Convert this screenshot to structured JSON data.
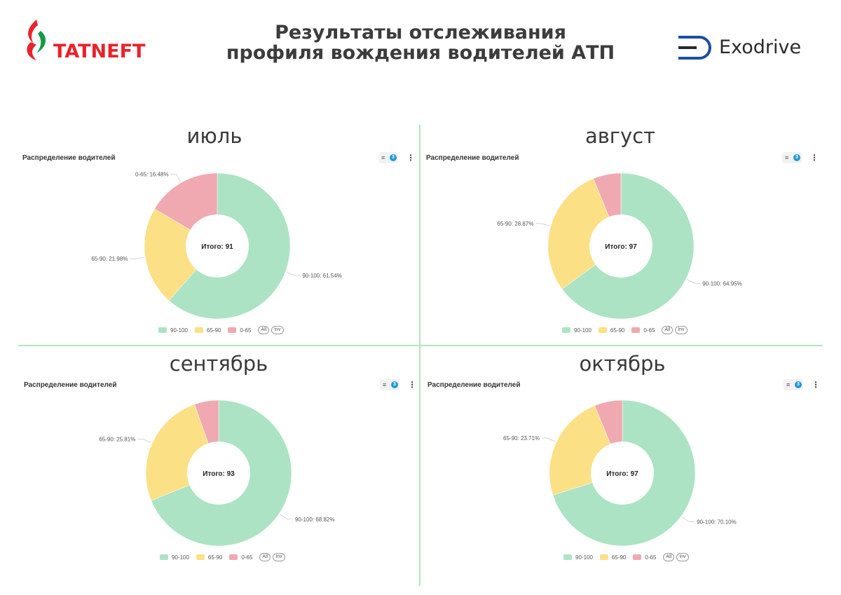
{
  "header": {
    "title_line1": "Результаты отслеживания",
    "title_line2": "профиля вождения водителей АТП",
    "left_logo_text": "TATNEFT",
    "right_logo_text": "Exodrive"
  },
  "colors": {
    "90-100": "#ade3c5",
    "65-90": "#fbe086",
    "0-65": "#f0a9b1",
    "leader": "#c8c8c8",
    "tatneft_red": "#e8232a",
    "tatneft_green": "#0f9b48",
    "exodrive_blue": "#1c4da0",
    "divider": "#b3e3bf"
  },
  "controls": {
    "filter_badge": "3",
    "menu_icon": "kebab-icon",
    "filter_icon": "filter-icon"
  },
  "legend": {
    "items": [
      "90-100",
      "65-90",
      "0-65"
    ],
    "all_label": "All",
    "inv_label": "Inv"
  },
  "chart_data": [
    {
      "type": "pie",
      "month": "июль",
      "title": "Распределение водителей",
      "center_label": "Итого: 91",
      "slices": [
        {
          "name": "90-100",
          "value": 61.54,
          "label": "90-100: 61.54%"
        },
        {
          "name": "65-90",
          "value": 21.98,
          "label": "65-90: 21.98%"
        },
        {
          "name": "0-65",
          "value": 16.48,
          "label": "0-65: 16.48%"
        }
      ]
    },
    {
      "type": "pie",
      "month": "август",
      "title": "Распределение водителей",
      "center_label": "Итого: 97",
      "slices": [
        {
          "name": "90-100",
          "value": 64.95,
          "label": "90-100: 64.95%"
        },
        {
          "name": "65-90",
          "value": 28.87,
          "label": "65-90: 28.87%"
        },
        {
          "name": "0-65",
          "value": 6.18,
          "label": ""
        }
      ]
    },
    {
      "type": "pie",
      "month": "сентябрь",
      "title": "Распределение водителей",
      "center_label": "Итого: 93",
      "slices": [
        {
          "name": "90-100",
          "value": 68.82,
          "label": "90-100: 68.82%"
        },
        {
          "name": "65-90",
          "value": 25.81,
          "label": "65-90: 25.81%"
        },
        {
          "name": "0-65",
          "value": 5.37,
          "label": ""
        }
      ]
    },
    {
      "type": "pie",
      "month": "октябрь",
      "title": "Распределение водителей",
      "center_label": "Итого: 97",
      "slices": [
        {
          "name": "90-100",
          "value": 70.1,
          "label": "90-100: 70.10%"
        },
        {
          "name": "65-90",
          "value": 23.71,
          "label": "65-90: 23.71%"
        },
        {
          "name": "0-65",
          "value": 6.19,
          "label": ""
        }
      ]
    }
  ]
}
